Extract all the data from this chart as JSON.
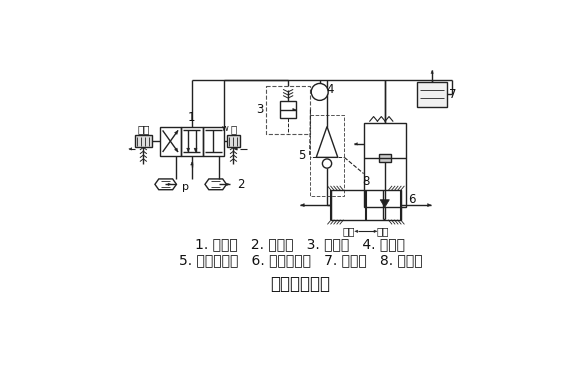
{
  "background_color": "#ffffff",
  "title": "夹具系统回路",
  "title_fontsize": 12,
  "title_bold": true,
  "legend_line1": "1. 换向阀   2. 消声器   3. 减压阀   4. 压力表",
  "legend_line2": "5. 快速放气阀   6. 气液增压器   7. 储油器   8. 液压缸",
  "legend_fontsize": 10,
  "line_color": "#222222",
  "lw": 1.0
}
